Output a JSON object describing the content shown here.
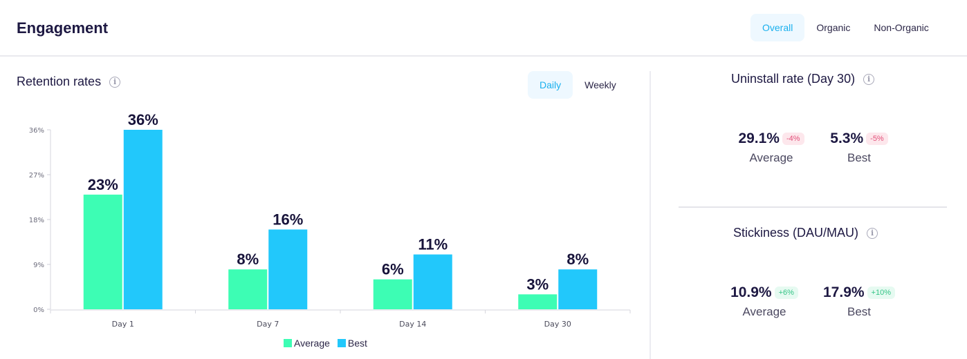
{
  "header": {
    "title": "Engagement",
    "filters": [
      {
        "label": "Overall",
        "active": true
      },
      {
        "label": "Organic",
        "active": false
      },
      {
        "label": "Non-Organic",
        "active": false
      }
    ]
  },
  "retention": {
    "title": "Retention rates",
    "toggles": [
      {
        "label": "Daily",
        "active": true
      },
      {
        "label": "Weekly",
        "active": false
      }
    ]
  },
  "chart_data": {
    "type": "bar",
    "title": "Retention rates",
    "categories": [
      "Day 1",
      "Day 7",
      "Day 14",
      "Day 30"
    ],
    "series": [
      {
        "name": "Average",
        "color": "#3dfdb4",
        "values": [
          23,
          8,
          6,
          3
        ],
        "labels": [
          "23%",
          "8%",
          "6%",
          "3%"
        ]
      },
      {
        "name": "Best",
        "color": "#22c8fb",
        "values": [
          36,
          16,
          11,
          8
        ],
        "labels": [
          "36%",
          "16%",
          "11%",
          "8%"
        ]
      }
    ],
    "yticks": [
      0,
      9,
      18,
      27,
      36
    ],
    "ytick_labels": [
      "0%",
      "9%",
      "18%",
      "27%",
      "36%"
    ],
    "ylim": [
      0,
      36
    ],
    "xlabel": "",
    "ylabel": "",
    "legend": "bottom-center"
  },
  "uninstall": {
    "title": "Uninstall rate (Day 30)",
    "average": {
      "value": "29.1%",
      "delta": "-4%",
      "label": "Average"
    },
    "best": {
      "value": "5.3%",
      "delta": "-5%",
      "label": "Best"
    }
  },
  "stickiness": {
    "title": "Stickiness (DAU/MAU)",
    "average": {
      "value": "10.9%",
      "delta": "+6%",
      "label": "Average"
    },
    "best": {
      "value": "17.9%",
      "delta": "+10%",
      "label": "Best"
    }
  },
  "icons": {
    "info": "info-icon"
  }
}
